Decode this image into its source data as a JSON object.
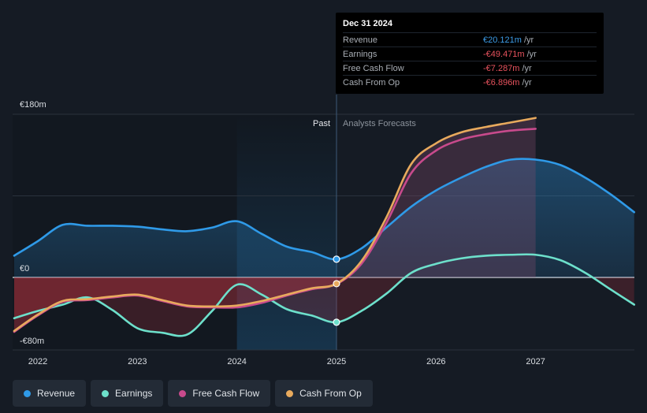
{
  "chart_data": {
    "type": "line",
    "x_ticks": [
      "2022",
      "2023",
      "2024",
      "2025",
      "2026",
      "2027"
    ],
    "y_ticks": [
      {
        "value": 180,
        "label": "€180m"
      },
      {
        "value": 0,
        "label": "€0"
      },
      {
        "value": -80,
        "label": "-€80m"
      }
    ],
    "ylim": [
      -80,
      180
    ],
    "xlim": [
      2021.75,
      2027.99
    ],
    "past_label": "Past",
    "forecast_label": "Analysts Forecasts",
    "divider_x": 2025.0,
    "highlight_start": 2024.0,
    "series": [
      {
        "name": "Revenue",
        "color": "#2f9ae8",
        "x": [
          2021.75,
          2022.0,
          2022.25,
          2022.5,
          2022.75,
          2023.0,
          2023.25,
          2023.5,
          2023.75,
          2024.0,
          2024.25,
          2024.5,
          2024.75,
          2025.0,
          2025.25,
          2025.5,
          2025.75,
          2026.0,
          2026.25,
          2026.5,
          2026.75,
          2027.0,
          2027.25,
          2027.5,
          2027.75,
          2027.99
        ],
        "values": [
          24,
          40,
          58,
          57,
          57,
          56,
          53,
          51,
          55,
          62,
          48,
          34,
          28,
          20,
          32,
          55,
          78,
          96,
          110,
          122,
          130,
          130,
          124,
          110,
          92,
          72
        ]
      },
      {
        "name": "Earnings",
        "color": "#6de0cb",
        "x": [
          2021.75,
          2022.0,
          2022.25,
          2022.5,
          2022.75,
          2023.0,
          2023.25,
          2023.5,
          2023.75,
          2024.0,
          2024.25,
          2024.5,
          2024.75,
          2025.0,
          2025.25,
          2025.5,
          2025.75,
          2026.0,
          2026.25,
          2026.5,
          2026.75,
          2027.0,
          2027.25,
          2027.5,
          2027.75,
          2027.99
        ],
        "values": [
          -45,
          -37,
          -30,
          -22,
          -36,
          -56,
          -61,
          -63,
          -37,
          -8,
          -19,
          -35,
          -42,
          -49.5,
          -37,
          -18,
          5,
          15,
          21,
          24,
          25,
          25,
          19,
          5,
          -13,
          -30
        ]
      },
      {
        "name": "Free Cash Flow",
        "color": "#c84a8c",
        "x": [
          2021.75,
          2022.0,
          2022.25,
          2022.5,
          2022.75,
          2023.0,
          2023.25,
          2023.5,
          2023.75,
          2024.0,
          2024.25,
          2024.5,
          2024.75,
          2025.0,
          2025.25,
          2025.5,
          2025.75,
          2026.0,
          2026.25,
          2026.5,
          2026.75,
          2027.0
        ],
        "values": [
          -60,
          -42,
          -27,
          -25,
          -22,
          -20,
          -26,
          -32,
          -33,
          -33,
          -28,
          -20,
          -13,
          -7.3,
          15,
          60,
          115,
          140,
          152,
          158,
          162,
          164
        ]
      },
      {
        "name": "Cash From Op",
        "color": "#e8aa5d",
        "x": [
          2021.75,
          2022.0,
          2022.25,
          2022.5,
          2022.75,
          2023.0,
          2023.25,
          2023.5,
          2023.75,
          2024.0,
          2024.25,
          2024.5,
          2024.75,
          2025.0,
          2025.25,
          2025.5,
          2025.75,
          2026.0,
          2026.25,
          2026.5,
          2026.75,
          2027.0
        ],
        "values": [
          -59,
          -41,
          -26,
          -24,
          -21,
          -19,
          -25,
          -31,
          -32,
          -31,
          -26,
          -19,
          -12,
          -6.9,
          18,
          66,
          125,
          148,
          160,
          166,
          171,
          176
        ]
      }
    ],
    "highlight_points": [
      {
        "series": "Revenue",
        "x": 2025.0,
        "value": 20.121
      },
      {
        "series": "Earnings",
        "x": 2025.0,
        "value": -49.471
      },
      {
        "series": "Cash From Op",
        "x": 2025.0,
        "value": -6.896
      }
    ]
  },
  "tooltip": {
    "date": "Dec 31 2024",
    "rows": [
      {
        "label": "Revenue",
        "value": "€20.121m",
        "unit": "/yr",
        "color": "#3d9de8"
      },
      {
        "label": "Earnings",
        "value": "-€49.471m",
        "unit": "/yr",
        "color": "#e9535e"
      },
      {
        "label": "Free Cash Flow",
        "value": "-€7.287m",
        "unit": "/yr",
        "color": "#e9535e"
      },
      {
        "label": "Cash From Op",
        "value": "-€6.896m",
        "unit": "/yr",
        "color": "#e9535e"
      }
    ]
  },
  "legend": [
    {
      "label": "Revenue",
      "color": "#2f9ae8"
    },
    {
      "label": "Earnings",
      "color": "#6de0cb"
    },
    {
      "label": "Free Cash Flow",
      "color": "#c84a8c"
    },
    {
      "label": "Cash From Op",
      "color": "#e8aa5d"
    }
  ]
}
